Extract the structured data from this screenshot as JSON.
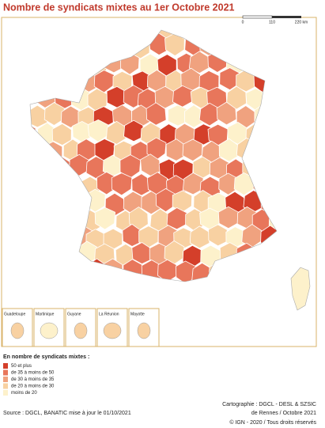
{
  "header": {
    "title": "Nombre de syndicats mixtes au 1er Octobre 2021"
  },
  "scale": {
    "labels": [
      "0",
      "110",
      "220 km"
    ]
  },
  "insets": [
    "Guadeloupe",
    "Martinique",
    "Guyane",
    "La Réunion",
    "Mayotte"
  ],
  "legend": {
    "title": "En nombre de syndicats mixtes :",
    "items": [
      {
        "label": "50 et plus",
        "color": "#d43f2a"
      },
      {
        "label": "de 35 à moins de 50",
        "color": "#e8765b"
      },
      {
        "label": "de 30 à moins de 35",
        "color": "#f0a27f"
      },
      {
        "label": "de 20 à moins de 30",
        "color": "#f8d1a2"
      },
      {
        "label": "moins de 20",
        "color": "#fdf1cb"
      }
    ]
  },
  "footer": {
    "source": "Source : DGCL, BANATIC mise à jour le 01/10/2021",
    "credits": [
      "Cartographie : DGCL - DESL & SZSIC",
      "de Rennes / Octobre 2021",
      "© IGN - 2020 / Tous droits réservés"
    ]
  }
}
